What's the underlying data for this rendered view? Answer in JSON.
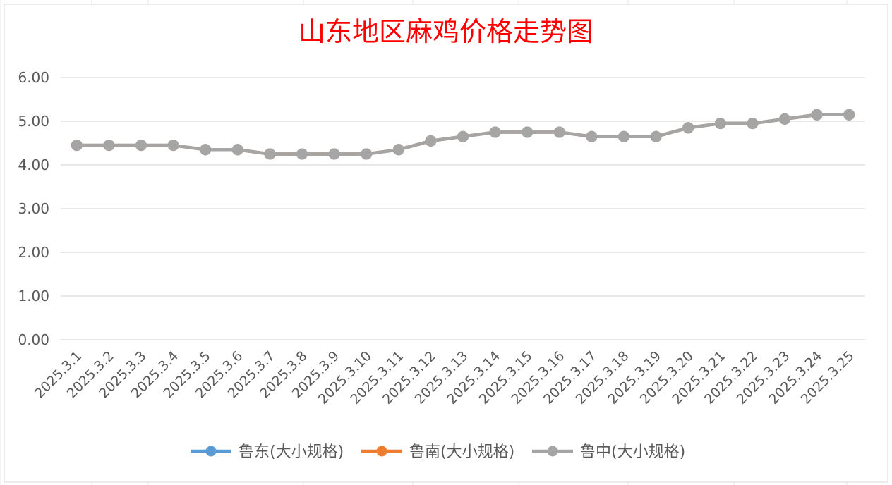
{
  "chart_data": {
    "type": "line",
    "title": "山东地区麻鸡价格走势图",
    "categories": [
      "2025.3.1",
      "2025.3.2",
      "2025.3.3",
      "2025.3.4",
      "2025.3.5",
      "2025.3.6",
      "2025.3.7",
      "2025.3.8",
      "2025.3.9",
      "2025.3.10",
      "2025.3.11",
      "2025.3.12",
      "2025.3.13",
      "2025.3.14",
      "2025.3.15",
      "2025.3.16",
      "2025.3.17",
      "2025.3.18",
      "2025.3.19",
      "2025.3.20",
      "2025.3.21",
      "2025.3.22",
      "2025.3.23",
      "2025.3.24",
      "2025.3.25"
    ],
    "y_ticks": [
      "0.00",
      "1.00",
      "2.00",
      "3.00",
      "4.00",
      "5.00",
      "6.00"
    ],
    "ylim": [
      0,
      6
    ],
    "grid": true,
    "legend_position": "bottom",
    "series": [
      {
        "name": "鲁东(大小规格)",
        "color": "#5B9BD5",
        "values": [
          4.45,
          4.45,
          4.45,
          4.45,
          4.35,
          4.35,
          4.25,
          4.25,
          4.25,
          4.25,
          4.35,
          4.55,
          4.65,
          4.75,
          4.75,
          4.75,
          4.65,
          4.65,
          4.65,
          4.85,
          4.95,
          4.95,
          5.05,
          5.15,
          5.15
        ]
      },
      {
        "name": "鲁南(大小规格)",
        "color": "#ED7D31",
        "values": [
          4.45,
          4.45,
          4.45,
          4.45,
          4.35,
          4.35,
          4.25,
          4.25,
          4.25,
          4.25,
          4.35,
          4.55,
          4.65,
          4.75,
          4.75,
          4.75,
          4.65,
          4.65,
          4.65,
          4.85,
          4.95,
          4.95,
          5.05,
          5.15,
          5.15
        ]
      },
      {
        "name": "鲁中(大小规格)",
        "color": "#A5A5A5",
        "values": [
          4.45,
          4.45,
          4.45,
          4.45,
          4.35,
          4.35,
          4.25,
          4.25,
          4.25,
          4.25,
          4.35,
          4.55,
          4.65,
          4.75,
          4.75,
          4.75,
          4.65,
          4.65,
          4.65,
          4.85,
          4.95,
          4.95,
          5.05,
          5.15,
          5.15
        ]
      }
    ]
  }
}
